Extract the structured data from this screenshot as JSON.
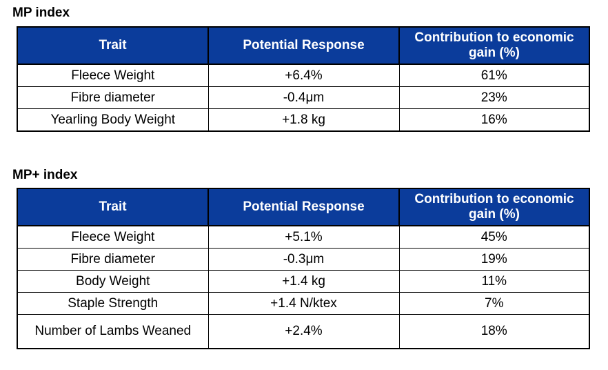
{
  "sections": [
    {
      "title": "MP index",
      "headers": [
        "Trait",
        "Potential Response",
        "Contribution to economic gain (%)"
      ],
      "rows": [
        [
          "Fleece Weight",
          "+6.4%",
          "61%"
        ],
        [
          "Fibre diameter",
          "-0.4μm",
          "23%"
        ],
        [
          "Yearling Body Weight",
          "+1.8 kg",
          "16%"
        ]
      ]
    },
    {
      "title": "MP+ index",
      "headers": [
        "Trait",
        "Potential Response",
        "Contribution to economic gain (%)"
      ],
      "rows": [
        [
          "Fleece Weight",
          "+5.1%",
          "45%"
        ],
        [
          "Fibre diameter",
          "-0.3μm",
          "19%"
        ],
        [
          "Body Weight",
          "+1.4 kg",
          "11%"
        ],
        [
          "Staple Strength",
          "+1.4 N/ktex",
          "7%"
        ],
        [
          "Number of Lambs Weaned",
          "+2.4%",
          "18%"
        ]
      ]
    }
  ],
  "colors": {
    "header_background": "#0b3c9b",
    "header_text": "#ffffff",
    "border": "#000000"
  }
}
